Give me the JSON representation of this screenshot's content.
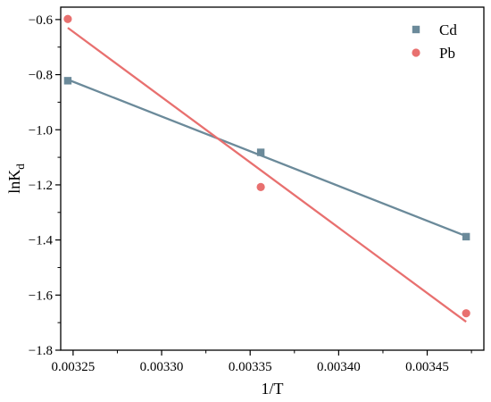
{
  "chart_data": {
    "type": "scatter",
    "xlabel": "1/T",
    "ylabel_main": "lnK",
    "ylabel_sub": "d",
    "xlim": [
      0.003243,
      0.003482
    ],
    "ylim": [
      -1.8,
      -0.555
    ],
    "xticks": [
      0.00325,
      0.0033,
      0.00335,
      0.0034,
      0.00345
    ],
    "xtick_labels": [
      "0.00325",
      "0.00330",
      "0.00335",
      "0.00340",
      "0.00345"
    ],
    "yticks": [
      -1.8,
      -1.6,
      -1.4,
      -1.2,
      -1.0,
      -0.8,
      -0.6
    ],
    "ytick_labels": [
      "−1.8",
      "−1.6",
      "−1.4",
      "−1.2",
      "−1.0",
      "−0.8",
      "−0.6"
    ],
    "legend_position": "top-right",
    "grid": false,
    "series": [
      {
        "name": "Cd",
        "marker": "square",
        "color": "#6b8a9a",
        "x": [
          0.003247,
          0.003356,
          0.003472
        ],
        "y": [
          -0.822,
          -1.082,
          -1.388
        ],
        "fit": {
          "x": [
            0.003247,
            0.003472
          ],
          "y": [
            -0.818,
            -1.386
          ]
        }
      },
      {
        "name": "Pb",
        "marker": "circle",
        "color": "#e8706f",
        "x": [
          0.003247,
          0.003356,
          0.003472
        ],
        "y": [
          -0.598,
          -1.208,
          -1.666
        ],
        "fit": {
          "x": [
            0.003247,
            0.003472
          ],
          "y": [
            -0.63,
            -1.697
          ]
        }
      }
    ]
  }
}
